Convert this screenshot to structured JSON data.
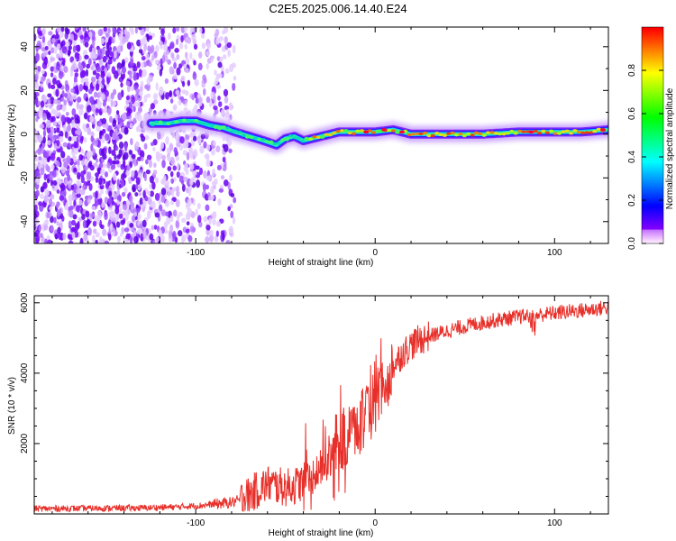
{
  "title": "C2E5.2025.006.14.40.E24",
  "chart_data": [
    {
      "type": "heatmap",
      "xlabel": "Height of straight line (km)",
      "ylabel": "Frequency (Hz)",
      "xlim": [
        -190,
        130
      ],
      "ylim": [
        -50,
        49
      ],
      "xticks": [
        -100,
        0,
        100
      ],
      "xtick_labels": [
        "-100",
        "0",
        "100"
      ],
      "yticks": [
        -40,
        -20,
        0,
        20,
        40
      ],
      "ytick_labels": [
        "-40",
        "-20",
        "0",
        "20",
        "40"
      ],
      "colorbar": {
        "label": "Normalized spectral amplitude",
        "range": [
          0,
          1
        ],
        "ticks": [
          0.0,
          0.2,
          0.4,
          0.6,
          0.8
        ],
        "tick_labels": [
          "0.0",
          "0.2",
          "0.4",
          "0.6",
          "0.8"
        ],
        "colors": [
          "#ffffff",
          "#c080ff",
          "#8000ff",
          "#0000ff",
          "#00c0ff",
          "#00ffa0",
          "#40ff00",
          "#c0ff00",
          "#ffc000",
          "#ff4000",
          "#ff0060"
        ]
      },
      "trace": {
        "x": [
          -125,
          -115,
          -108,
          -100,
          -92,
          -85,
          -78,
          -70,
          -62,
          -55,
          -50,
          -45,
          -40,
          -35,
          -30,
          -25,
          -20,
          -10,
          0,
          10,
          20,
          40,
          60,
          80,
          100,
          115,
          130
        ],
        "y": [
          5,
          5,
          6,
          6,
          4,
          3,
          1,
          -1,
          -3,
          -5,
          -2,
          -1,
          -3,
          -2,
          -1,
          0,
          1,
          1,
          1,
          2,
          0,
          0,
          0,
          1,
          1,
          1,
          2
        ]
      }
    },
    {
      "type": "line",
      "xlabel": "Height of straight line (km)",
      "ylabel": "SNR (10 * v/v)",
      "xlim": [
        -190,
        130
      ],
      "ylim": [
        0,
        6200
      ],
      "xticks": [
        -100,
        0,
        100
      ],
      "xtick_labels": [
        "-100",
        "0",
        "100"
      ],
      "yticks": [
        2000,
        4000,
        6000
      ],
      "ytick_labels": [
        "2000",
        "4000",
        "6000"
      ],
      "color": "#e8302a",
      "x": [
        -190,
        -160,
        -130,
        -110,
        -95,
        -85,
        -80,
        -75,
        -70,
        -65,
        -60,
        -55,
        -50,
        -45,
        -40,
        -35,
        -30,
        -25,
        -20,
        -15,
        -10,
        -5,
        0,
        5,
        10,
        15,
        20,
        25,
        30,
        40,
        50,
        60,
        70,
        80,
        90,
        100,
        110,
        120,
        130
      ],
      "y": [
        150,
        160,
        170,
        200,
        250,
        300,
        330,
        400,
        550,
        700,
        850,
        800,
        750,
        800,
        900,
        1100,
        1300,
        1600,
        1900,
        2200,
        2500,
        2800,
        3200,
        3700,
        4200,
        4550,
        4800,
        4950,
        5050,
        5200,
        5330,
        5440,
        5530,
        5600,
        5650,
        5710,
        5760,
        5810,
        5870
      ]
    }
  ]
}
